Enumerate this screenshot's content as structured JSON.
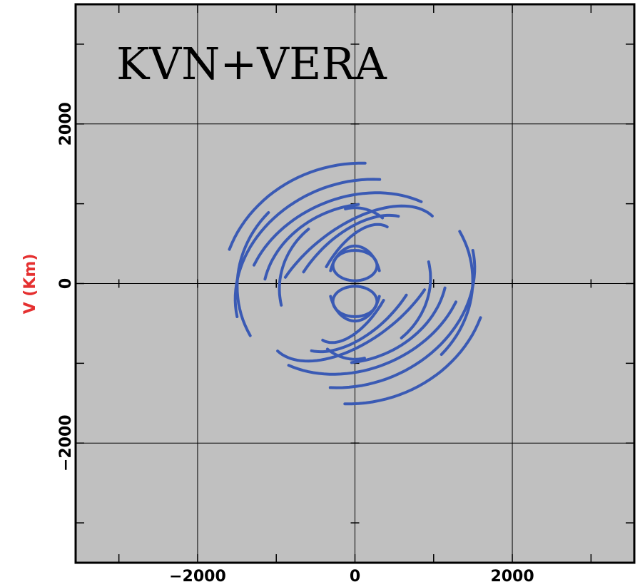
{
  "chart_data": {
    "type": "scatter",
    "title": "KVN+VERA",
    "xlabel": "",
    "ylabel": "V (Km)",
    "xlim": [
      -3550,
      3550
    ],
    "ylim": [
      -3500,
      3500
    ],
    "x_ticks": [
      -2000,
      0,
      2000
    ],
    "x_tick_labels": [
      "−2000",
      "0",
      "2000"
    ],
    "y_ticks": [
      -2000,
      0,
      2000
    ],
    "y_tick_labels": [
      "−2000",
      "0",
      "2000"
    ],
    "grid": true,
    "background_color": "#c0c0c0",
    "series_color": "#3a5ab4",
    "tracks": [
      {
        "center": [
          0,
          0
        ],
        "a": 1560,
        "b": 1260,
        "rot": 22,
        "arcs": [
          [
            60,
            172
          ],
          [
            240,
            352
          ]
        ]
      },
      {
        "center": [
          0,
          0
        ],
        "a": 1440,
        "b": 1080,
        "rot": 22,
        "arcs": [
          [
            36,
            140
          ],
          [
            216,
            320
          ]
        ]
      },
      {
        "center": [
          0,
          0
        ],
        "a": 1200,
        "b": 960,
        "rot": 22,
        "arcs": [
          [
            70,
            150
          ],
          [
            250,
            330
          ]
        ]
      },
      {
        "center": [
          0,
          0
        ],
        "a": 1300,
        "b": 700,
        "rot": 38,
        "arcs": [
          [
            5,
            120
          ],
          [
            185,
            300
          ]
        ]
      },
      {
        "center": [
          0,
          0
        ],
        "a": 1050,
        "b": 600,
        "rot": 45,
        "arcs": [
          [
            20,
            110
          ],
          [
            200,
            290
          ]
        ]
      },
      {
        "center": [
          0,
          0
        ],
        "a": 820,
        "b": 420,
        "rot": 60,
        "arcs": [
          [
            0,
            90
          ],
          [
            180,
            270
          ]
        ]
      },
      {
        "center": [
          0,
          0
        ],
        "a": 1700,
        "b": 1500,
        "rot": 12,
        "arcs": [
          [
            75,
            150
          ],
          [
            255,
            330
          ]
        ]
      },
      {
        "center": [
          0,
          0
        ],
        "a": 1500,
        "b": 1350,
        "rot": 8,
        "arcs": [
          [
            130,
            200
          ],
          [
            310,
            380
          ]
        ]
      },
      {
        "center": [
          0,
          0
        ],
        "a": 980,
        "b": 900,
        "rot": 30,
        "arcs": [
          [
            100,
            165
          ],
          [
            280,
            345
          ]
        ]
      },
      {
        "center": [
          0,
          0
        ],
        "a": 700,
        "b": 950,
        "rot": 0,
        "arcs": [
          [
            60,
            100
          ],
          [
            240,
            280
          ]
        ]
      },
      {
        "center": [
          0,
          225
        ],
        "a": 280,
        "b": 190,
        "rot": 0,
        "arcs": [
          [
            0,
            360
          ]
        ]
      },
      {
        "center": [
          0,
          -225
        ],
        "a": 280,
        "b": 190,
        "rot": 0,
        "arcs": [
          [
            0,
            360
          ]
        ]
      },
      {
        "center": [
          0,
          0
        ],
        "a": 330,
        "b": 470,
        "rot": 0,
        "arcs": [
          [
            20,
            160
          ],
          [
            200,
            340
          ]
        ]
      }
    ]
  }
}
